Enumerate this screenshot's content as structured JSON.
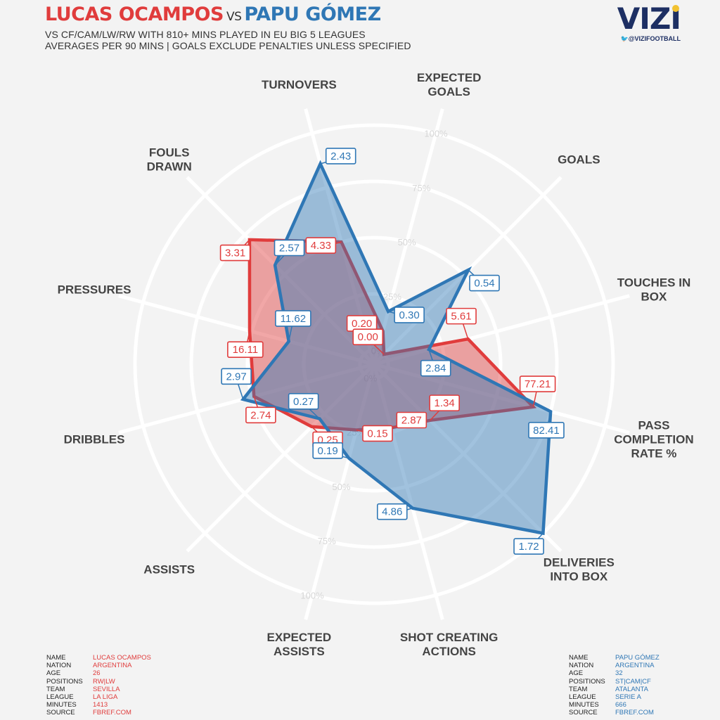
{
  "header": {
    "player1": "LUCAS OCAMPOS",
    "vs": "VS",
    "player2": "PAPU GÓMEZ",
    "subtitle_line1": "VS CF/CAM/LW/RW WITH 810+ MINS PLAYED IN EU BIG 5 LEAGUES",
    "subtitle_line2": "AVERAGES PER 90 MINS | GOALS EXCLUDE PENALTIES UNLESS SPECIFIED"
  },
  "logo": {
    "text": "VIZI",
    "handle": "@VIZIFOOTBALL",
    "icon": "twitter-bird-icon"
  },
  "colors": {
    "player1": "#e03c3c",
    "player2": "#2f77b5",
    "background": "#f3f3f3",
    "grid": "#ffffff"
  },
  "player1_info": {
    "rows": [
      {
        "key": "NAME",
        "value": "LUCAS OCAMPOS"
      },
      {
        "key": "NATION",
        "value": "ARGENTINA"
      },
      {
        "key": "AGE",
        "value": "26"
      },
      {
        "key": "POSITIONS",
        "value": "RW|LW"
      },
      {
        "key": "TEAM",
        "value": "SEVILLA"
      },
      {
        "key": "LEAGUE",
        "value": "LA LIGA"
      },
      {
        "key": "MINUTES",
        "value": "1413"
      },
      {
        "key": "SOURCE",
        "value": "FBREF.COM"
      }
    ]
  },
  "player2_info": {
    "rows": [
      {
        "key": "NAME",
        "value": "PAPU GÓMEZ"
      },
      {
        "key": "NATION",
        "value": "ARGENTINA"
      },
      {
        "key": "AGE",
        "value": "32"
      },
      {
        "key": "POSITIONS",
        "value": "ST|CAM|CF"
      },
      {
        "key": "TEAM",
        "value": "ATALANTA"
      },
      {
        "key": "LEAGUE",
        "value": "SERIE A"
      },
      {
        "key": "MINUTES",
        "value": "666"
      },
      {
        "key": "SOURCE",
        "value": "FBREF.COM"
      }
    ]
  },
  "chart_data": {
    "type": "radar",
    "scale": "percentile",
    "rlim": [
      0,
      100
    ],
    "ring_labels": [
      "0%",
      "25%",
      "50%",
      "75%",
      "100%"
    ],
    "axes": [
      {
        "label": [
          "EXPECTED",
          "GOALS"
        ]
      },
      {
        "label": [
          "GOALS"
        ]
      },
      {
        "label": [
          "TOUCHES IN",
          "BOX"
        ]
      },
      {
        "label": [
          "PASS",
          "COMPLETION",
          "RATE %"
        ]
      },
      {
        "label": [
          "DELIVERIES",
          "INTO BOX"
        ]
      },
      {
        "label": [
          "SHOT CREATING",
          "ACTIONS"
        ]
      },
      {
        "label": [
          "EXPECTED",
          "ASSISTS"
        ]
      },
      {
        "label": [
          "ASSISTS"
        ]
      },
      {
        "label": [
          "DRIBBLES"
        ]
      },
      {
        "label": [
          "PRESSURES"
        ]
      },
      {
        "label": [
          "FOULS",
          "DRAWN"
        ]
      },
      {
        "label": [
          "TURNOVERS"
        ]
      }
    ],
    "series": [
      {
        "name": "LUCAS OCAMPOS",
        "color": "#e03c3c",
        "percentiles": [
          9,
          0,
          37,
          67,
          29,
          23,
          24,
          33,
          49,
          51,
          72,
          50
        ],
        "value_labels": [
          "0.20",
          "0.00",
          "5.61",
          "77.21",
          "1.34",
          "2.87",
          "0.15",
          "0.25",
          "2.74",
          "16.11",
          "3.31",
          "4.33"
        ]
      },
      {
        "name": "PAPU GÓMEZ",
        "color": "#2f77b5",
        "percentiles": [
          18,
          53,
          19,
          75,
          100,
          60,
          37,
          28,
          54,
          33,
          56,
          86
        ],
        "value_labels": [
          "0.30",
          "0.54",
          "2.84",
          "82.41",
          "1.72",
          "4.86",
          "0.19",
          "0.27",
          "2.97",
          "11.62",
          "2.57",
          "2.43"
        ]
      }
    ]
  }
}
